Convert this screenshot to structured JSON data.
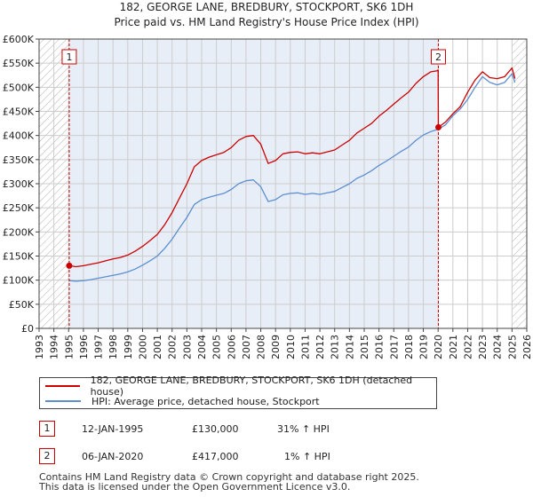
{
  "chart_data": {
    "type": "line",
    "title": "182, GEORGE LANE, BREDBURY, STOCKPORT, SK6 1DH",
    "subtitle": "Price paid vs. HM Land Registry's House Price Index (HPI)",
    "xlim": [
      1993,
      2026
    ],
    "ylim": [
      0,
      600000
    ],
    "x_ticks": [
      "1993",
      "1994",
      "1995",
      "1996",
      "1997",
      "1998",
      "1999",
      "2000",
      "2001",
      "2002",
      "2003",
      "2004",
      "2005",
      "2006",
      "2007",
      "2008",
      "2009",
      "2010",
      "2011",
      "2012",
      "2013",
      "2014",
      "2015",
      "2016",
      "2017",
      "2018",
      "2019",
      "2020",
      "2021",
      "2022",
      "2023",
      "2024",
      "2025",
      "2026"
    ],
    "y_ticks": [
      {
        "value": 0,
        "label": "£0"
      },
      {
        "value": 50000,
        "label": "£50K"
      },
      {
        "value": 100000,
        "label": "£100K"
      },
      {
        "value": 150000,
        "label": "£150K"
      },
      {
        "value": 200000,
        "label": "£200K"
      },
      {
        "value": 250000,
        "label": "£250K"
      },
      {
        "value": 300000,
        "label": "£300K"
      },
      {
        "value": 350000,
        "label": "£350K"
      },
      {
        "value": 400000,
        "label": "£400K"
      },
      {
        "value": 450000,
        "label": "£450K"
      },
      {
        "value": 500000,
        "label": "£500K"
      },
      {
        "value": 550000,
        "label": "£550K"
      },
      {
        "value": 600000,
        "label": "£600K"
      }
    ],
    "hatched_ranges": [
      [
        1993,
        1995.04
      ],
      [
        2025.0,
        2026
      ]
    ],
    "shaded_range": [
      1995.04,
      2020.02
    ],
    "series": [
      {
        "name": "182, GEORGE LANE, BREDBURY, STOCKPORT, SK6 1DH (detached house)",
        "color": "#cc0000",
        "x": [
          1995.04,
          1995.5,
          1996,
          1996.5,
          1997,
          1997.5,
          1998,
          1998.5,
          1999,
          1999.5,
          2000,
          2000.5,
          2001,
          2001.5,
          2002,
          2002.5,
          2003,
          2003.5,
          2004,
          2004.5,
          2005,
          2005.5,
          2006,
          2006.5,
          2007,
          2007.5,
          2008,
          2008.5,
          2009,
          2009.5,
          2010,
          2010.5,
          2011,
          2011.5,
          2012,
          2012.5,
          2013,
          2013.5,
          2014,
          2014.5,
          2015,
          2015.5,
          2016,
          2016.5,
          2017,
          2017.5,
          2018,
          2018.5,
          2019,
          2019.5,
          2019.9,
          2020.0,
          2020.02,
          2020.5,
          2021,
          2021.5,
          2022,
          2022.5,
          2023,
          2023.5,
          2024,
          2024.5,
          2025,
          2025.2
        ],
        "y": [
          130000,
          128000,
          130000,
          133000,
          136000,
          140000,
          144000,
          147000,
          152000,
          160000,
          170000,
          182000,
          195000,
          215000,
          240000,
          270000,
          300000,
          335000,
          348000,
          355000,
          360000,
          365000,
          375000,
          390000,
          398000,
          400000,
          382000,
          342000,
          348000,
          362000,
          365000,
          366000,
          362000,
          364000,
          362000,
          366000,
          370000,
          380000,
          390000,
          405000,
          415000,
          425000,
          440000,
          452000,
          465000,
          478000,
          490000,
          508000,
          522000,
          532000,
          534000,
          536000,
          417000,
          428000,
          445000,
          460000,
          490000,
          515000,
          532000,
          520000,
          518000,
          522000,
          540000,
          518000
        ]
      },
      {
        "name": "HPI: Average price, detached house, Stockport",
        "color": "#5b8fd0",
        "x": [
          1995.04,
          1995.5,
          1996,
          1996.5,
          1997,
          1997.5,
          1998,
          1998.5,
          1999,
          1999.5,
          2000,
          2000.5,
          2001,
          2001.5,
          2002,
          2002.5,
          2003,
          2003.5,
          2004,
          2004.5,
          2005,
          2005.5,
          2006,
          2006.5,
          2007,
          2007.5,
          2008,
          2008.5,
          2009,
          2009.5,
          2010,
          2010.5,
          2011,
          2011.5,
          2012,
          2012.5,
          2013,
          2013.5,
          2014,
          2014.5,
          2015,
          2015.5,
          2016,
          2016.5,
          2017,
          2017.5,
          2018,
          2018.5,
          2019,
          2019.5,
          2020.02,
          2020.5,
          2021,
          2021.5,
          2022,
          2022.5,
          2023,
          2023.5,
          2024,
          2024.5,
          2025,
          2025.2
        ],
        "y": [
          99000,
          98000,
          99000,
          101000,
          104000,
          107000,
          110000,
          113000,
          117000,
          123000,
          131000,
          140000,
          150000,
          166000,
          185000,
          208000,
          230000,
          257000,
          267000,
          272000,
          276000,
          280000,
          288000,
          300000,
          306000,
          308000,
          294000,
          263000,
          267000,
          277000,
          280000,
          281000,
          278000,
          280000,
          278000,
          281000,
          284000,
          292000,
          300000,
          311000,
          318000,
          327000,
          338000,
          347000,
          357000,
          367000,
          376000,
          390000,
          401000,
          408000,
          413000,
          422000,
          441000,
          455000,
          475000,
          500000,
          522000,
          510000,
          505000,
          510000,
          528000,
          510000
        ]
      }
    ],
    "sale_markers": [
      {
        "label": "1",
        "x": 1995.04,
        "y": 130000
      },
      {
        "label": "2",
        "x": 2020.02,
        "y": 417000
      }
    ]
  },
  "legend": {
    "property_label": "182, GEORGE LANE, BREDBURY, STOCKPORT, SK6 1DH (detached house)",
    "hpi_label": "HPI: Average price, detached house, Stockport"
  },
  "transactions": [
    {
      "num": "1",
      "date": "12-JAN-1995",
      "price": "£130,000",
      "hpi_change": "31% ↑ HPI"
    },
    {
      "num": "2",
      "date": "06-JAN-2020",
      "price": "£417,000",
      "hpi_change": "1% ↑ HPI"
    }
  ],
  "footer": {
    "line1": "Contains HM Land Registry data © Crown copyright and database right 2025.",
    "line2": "This data is licensed under the Open Government Licence v3.0."
  },
  "colors": {
    "red": "#cc0000",
    "blue": "#5b8fd0",
    "shade": "#e8eef8",
    "grid": "#cccccc"
  }
}
